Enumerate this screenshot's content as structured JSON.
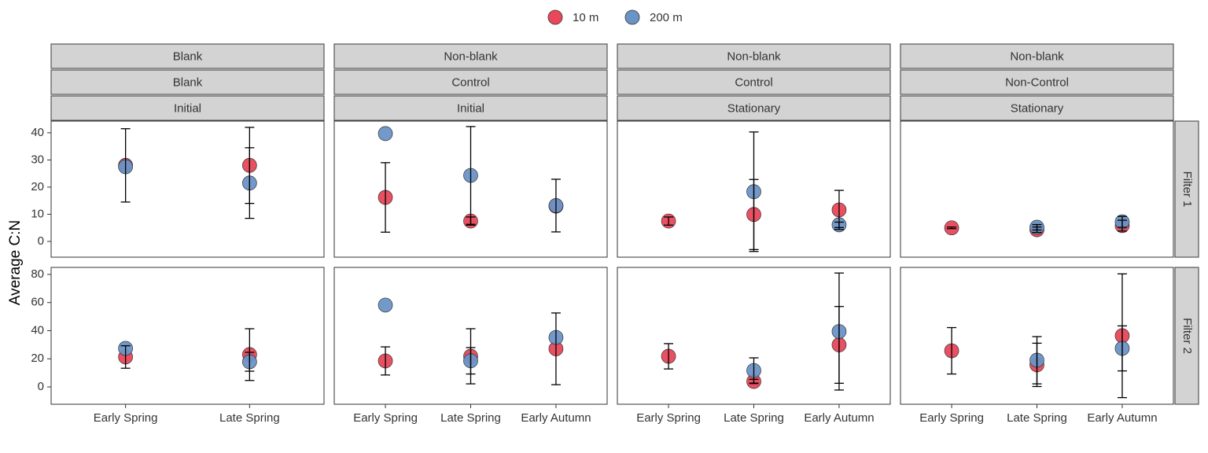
{
  "y_label": "Average C:N",
  "legend": [
    {
      "name": "10 m",
      "color": "#e8485a"
    },
    {
      "name": "200 m",
      "color": "#6a93c6"
    }
  ],
  "columns": [
    {
      "strips": [
        "Blank",
        "Blank",
        "Initial"
      ],
      "categories": [
        "Early Spring",
        "Late Spring"
      ]
    },
    {
      "strips": [
        "Non-blank",
        "Control",
        "Initial"
      ],
      "categories": [
        "Early Spring",
        "Late Spring",
        "Early Autumn"
      ]
    },
    {
      "strips": [
        "Non-blank",
        "Control",
        "Stationary"
      ],
      "categories": [
        "Early Spring",
        "Late Spring",
        "Early Autumn"
      ]
    },
    {
      "strips": [
        "Non-blank",
        "Non-Control",
        "Stationary"
      ],
      "categories": [
        "Early Spring",
        "Late Spring",
        "Early Autumn"
      ]
    }
  ],
  "rows": [
    {
      "label": "Filter 1",
      "ylim": [
        -5.8,
        44.3
      ],
      "yticks": [
        0,
        10,
        20,
        30,
        40
      ]
    },
    {
      "label": "Filter 2",
      "ylim": [
        -12.3,
        85
      ],
      "yticks": [
        0,
        20,
        40,
        60,
        80
      ]
    }
  ],
  "chart_data": [
    {
      "type": "scatter",
      "series": [
        {
          "values": [
            28,
            28
          ],
          "errors": [
            13.5,
            14
          ]
        },
        {
          "values": [
            27.5,
            21.5
          ],
          "errors": [
            null,
            13
          ]
        }
      ]
    },
    {
      "type": "scatter",
      "series": [
        {
          "values": [
            16.2,
            7.5,
            13
          ],
          "errors": [
            12.8,
            1.5,
            null
          ]
        },
        {
          "values": [
            39.7,
            24.3,
            13.2
          ],
          "errors": [
            null,
            18,
            9.7
          ]
        }
      ]
    },
    {
      "type": "scatter",
      "series": [
        {
          "values": [
            7.5,
            9.9,
            11.6
          ],
          "errors": [
            1.5,
            12.9,
            7.2
          ]
        },
        {
          "values": [
            null,
            18.3,
            6.1
          ],
          "errors": [
            null,
            22,
            1
          ]
        }
      ]
    },
    {
      "type": "scatter",
      "series": [
        {
          "values": [
            5,
            4.3,
            5.8
          ],
          "errors": [
            0.3,
            1,
            2
          ]
        },
        {
          "values": [
            null,
            5.2,
            7.2
          ],
          "errors": [
            null,
            1,
            2
          ]
        }
      ]
    },
    {
      "type": "scatter",
      "series": [
        {
          "values": [
            21.3,
            23
          ],
          "errors": [
            8,
            18.4
          ]
        },
        {
          "values": [
            27.4,
            17.9
          ],
          "errors": [
            null,
            6.7
          ]
        }
      ]
    },
    {
      "type": "scatter",
      "series": [
        {
          "values": [
            18.5,
            21.8,
            27.1
          ],
          "errors": [
            10,
            19.6,
            25.5
          ]
        },
        {
          "values": [
            58.2,
            18.6,
            35.2
          ],
          "errors": [
            null,
            9.4,
            null
          ]
        }
      ]
    },
    {
      "type": "scatter",
      "series": [
        {
          "values": [
            21.8,
            3.9,
            29.9
          ],
          "errors": [
            9,
            1.5,
            27.3
          ]
        },
        {
          "values": [
            null,
            11.7,
            39.4
          ],
          "errors": [
            null,
            9,
            41.6
          ]
        }
      ]
    },
    {
      "type": "scatter",
      "series": [
        {
          "values": [
            25.7,
            15.7,
            36.4
          ],
          "errors": [
            16.5,
            15.4,
            44
          ]
        },
        {
          "values": [
            null,
            19,
            27.4
          ],
          "errors": [
            null,
            16.8,
            16
          ]
        }
      ]
    }
  ]
}
